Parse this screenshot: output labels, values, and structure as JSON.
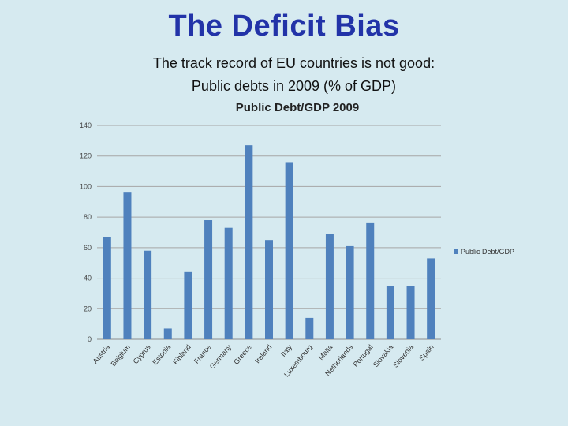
{
  "slide": {
    "title": "The Deficit Bias",
    "subtitle_line1": "The track record of EU countries is not good:",
    "subtitle_line2": "Public debts in 2009 (% of GDP)"
  },
  "colors": {
    "background": "#d6eaf0",
    "title": "#2233a8",
    "bar": "#4f81bd",
    "gridline": "#a6a6a6"
  },
  "chart_data": {
    "type": "bar",
    "title": "Public Debt/GDP 2009",
    "xlabel": "",
    "ylabel": "",
    "ylim": [
      0,
      140
    ],
    "yticks": [
      0,
      20,
      40,
      60,
      80,
      100,
      120,
      140
    ],
    "grid": true,
    "legend_position": "right",
    "categories": [
      "Austria",
      "Belgium",
      "Cyprus",
      "Estonia",
      "Finland",
      "France",
      "Germany",
      "Greece",
      "Ireland",
      "Italy",
      "Luxembourg",
      "Malta",
      "Netherlands",
      "Portugal",
      "Slovakia",
      "Slovenia",
      "Spain"
    ],
    "series": [
      {
        "name": "Public Debt/GDP",
        "values": [
          67,
          96,
          58,
          7,
          44,
          78,
          73,
          127,
          65,
          116,
          14,
          69,
          61,
          76,
          35,
          35,
          53
        ]
      }
    ]
  }
}
